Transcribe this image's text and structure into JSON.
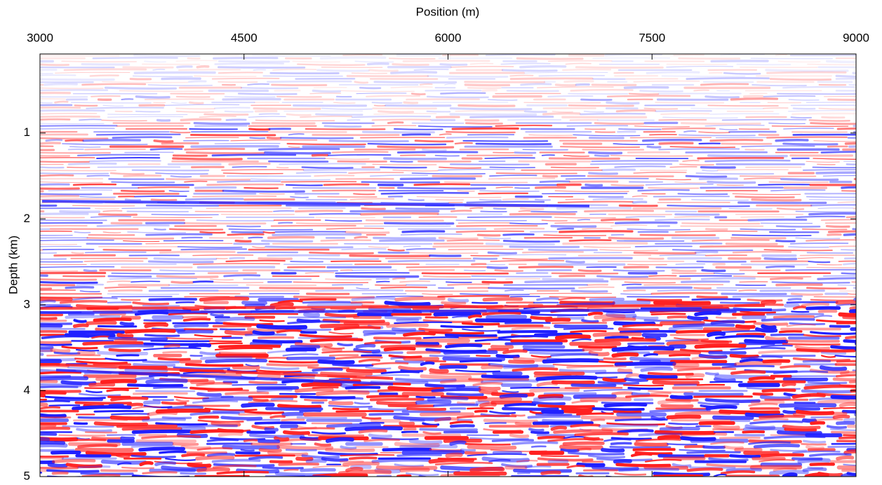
{
  "chart_data": {
    "type": "image",
    "x_label": "Position (m)",
    "y_label": "Depth (km)",
    "xlim": [
      3000,
      9000
    ],
    "xticks": [
      3000,
      4500,
      6000,
      7500,
      9000
    ],
    "ylim": [
      0.08,
      5
    ],
    "yticks": [
      1,
      2,
      3,
      4,
      5
    ],
    "colors": [
      "#ff2020",
      "#2020ff"
    ]
  }
}
